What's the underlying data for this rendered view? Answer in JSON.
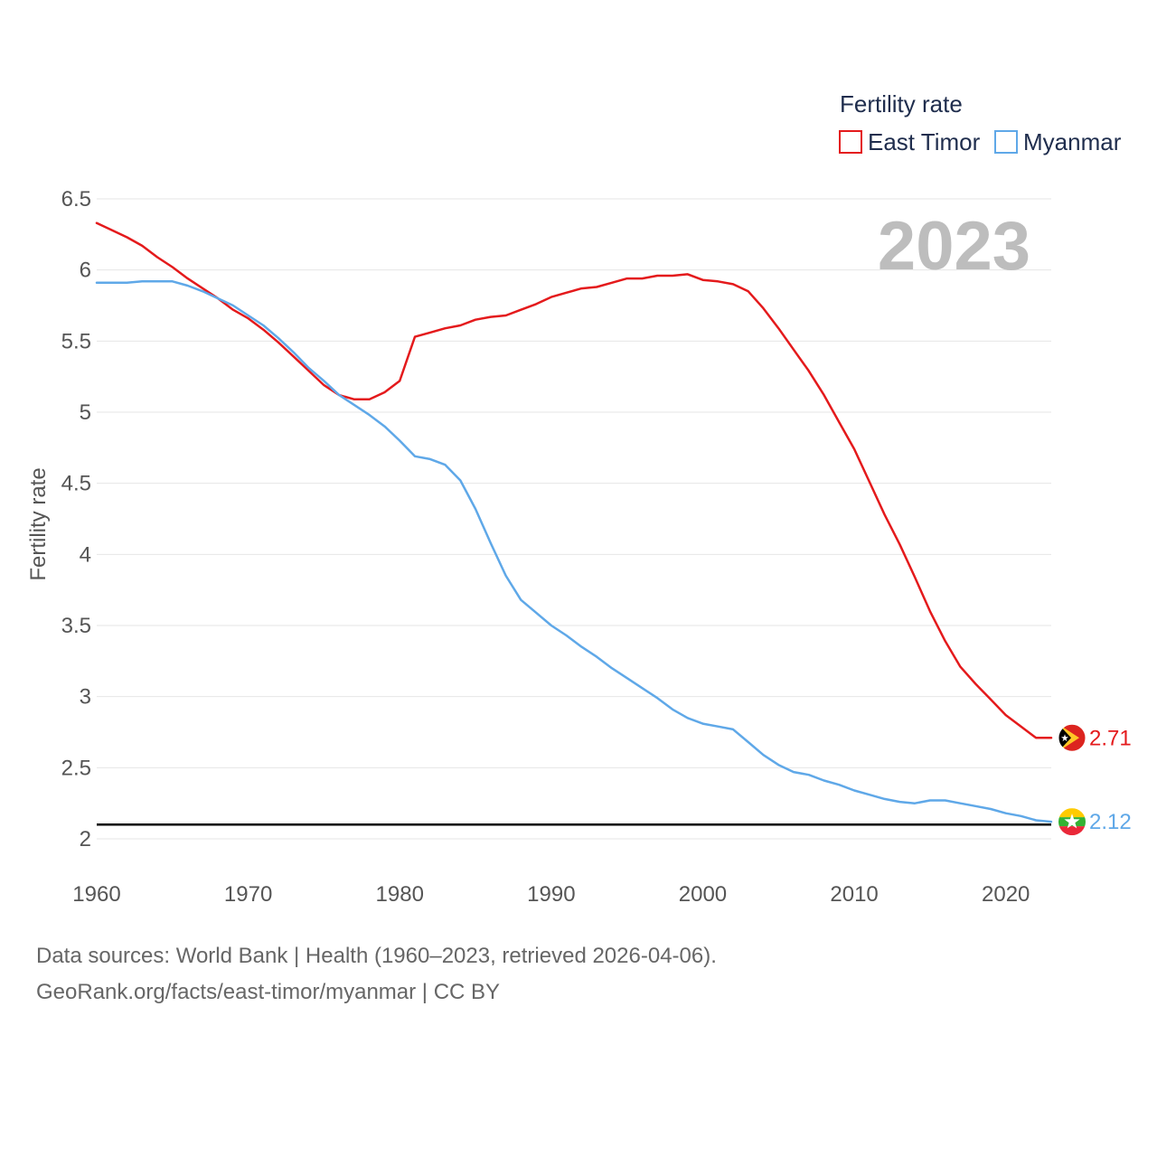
{
  "chart_data": {
    "type": "line",
    "ylabel": "Fertility rate",
    "xlabel": "",
    "xlim": [
      1960,
      2023
    ],
    "ylim": [
      2,
      6.5
    ],
    "x_ticks": [
      1960,
      1970,
      1980,
      1990,
      2000,
      2010,
      2020
    ],
    "x_tick_labels": [
      "1960",
      "1970",
      "1980",
      "1990",
      "2000",
      "2010",
      "2020"
    ],
    "y_ticks": [
      2,
      2.5,
      3,
      3.5,
      4,
      4.5,
      5,
      5.5,
      6,
      6.5
    ],
    "y_tick_labels": [
      "2",
      "2.5",
      "3",
      "3.5",
      "4",
      "4.5",
      "5",
      "5.5",
      "6",
      "6.5"
    ],
    "legend_title": "Fertility rate",
    "year_label": "2023",
    "reference_line": 2.1,
    "series": [
      {
        "name": "East Timor",
        "color": "#e41a1c",
        "end_label": "2.71",
        "flag": "east-timor-flag",
        "x": [
          1960,
          1961,
          1962,
          1963,
          1964,
          1965,
          1966,
          1967,
          1968,
          1969,
          1970,
          1971,
          1972,
          1973,
          1974,
          1975,
          1976,
          1977,
          1978,
          1979,
          1980,
          1981,
          1982,
          1983,
          1984,
          1985,
          1986,
          1987,
          1988,
          1989,
          1990,
          1991,
          1992,
          1993,
          1994,
          1995,
          1996,
          1997,
          1998,
          1999,
          2000,
          2001,
          2002,
          2003,
          2004,
          2005,
          2006,
          2007,
          2008,
          2009,
          2010,
          2011,
          2012,
          2013,
          2014,
          2015,
          2016,
          2017,
          2018,
          2019,
          2020,
          2021,
          2022,
          2023
        ],
        "values": [
          6.33,
          6.28,
          6.23,
          6.17,
          6.09,
          6.02,
          5.94,
          5.87,
          5.8,
          5.72,
          5.66,
          5.58,
          5.49,
          5.39,
          5.29,
          5.19,
          5.12,
          5.09,
          5.09,
          5.14,
          5.22,
          5.53,
          5.56,
          5.59,
          5.61,
          5.65,
          5.67,
          5.68,
          5.72,
          5.76,
          5.81,
          5.84,
          5.87,
          5.88,
          5.91,
          5.94,
          5.94,
          5.96,
          5.96,
          5.97,
          5.93,
          5.92,
          5.9,
          5.85,
          5.73,
          5.59,
          5.44,
          5.29,
          5.12,
          4.93,
          4.74,
          4.51,
          4.28,
          4.07,
          3.84,
          3.6,
          3.39,
          3.21,
          3.09,
          2.98,
          2.87,
          2.79,
          2.71,
          2.71
        ]
      },
      {
        "name": "Myanmar",
        "color": "#5fa8e8",
        "end_label": "2.12",
        "flag": "myanmar-flag",
        "x": [
          1960,
          1961,
          1962,
          1963,
          1964,
          1965,
          1966,
          1967,
          1968,
          1969,
          1970,
          1971,
          1972,
          1973,
          1974,
          1975,
          1976,
          1977,
          1978,
          1979,
          1980,
          1981,
          1982,
          1983,
          1984,
          1985,
          1986,
          1987,
          1988,
          1989,
          1990,
          1991,
          1992,
          1993,
          1994,
          1995,
          1996,
          1997,
          1998,
          1999,
          2000,
          2001,
          2002,
          2003,
          2004,
          2005,
          2006,
          2007,
          2008,
          2009,
          2010,
          2011,
          2012,
          2013,
          2014,
          2015,
          2016,
          2017,
          2018,
          2019,
          2020,
          2021,
          2022,
          2023
        ],
        "values": [
          5.91,
          5.91,
          5.91,
          5.92,
          5.92,
          5.92,
          5.89,
          5.85,
          5.8,
          5.75,
          5.68,
          5.61,
          5.52,
          5.42,
          5.31,
          5.22,
          5.12,
          5.05,
          4.98,
          4.9,
          4.8,
          4.69,
          4.67,
          4.63,
          4.52,
          4.32,
          4.08,
          3.85,
          3.68,
          3.59,
          3.5,
          3.43,
          3.35,
          3.28,
          3.2,
          3.13,
          3.06,
          2.99,
          2.91,
          2.85,
          2.81,
          2.79,
          2.77,
          2.68,
          2.59,
          2.52,
          2.47,
          2.45,
          2.41,
          2.38,
          2.34,
          2.31,
          2.28,
          2.26,
          2.25,
          2.27,
          2.27,
          2.25,
          2.23,
          2.21,
          2.18,
          2.16,
          2.13,
          2.12
        ]
      }
    ]
  },
  "footer": {
    "line1": "Data sources: World Bank | Health (1960–2023, retrieved 2026-04-06).",
    "line2": "GeoRank.org/facts/east-timor/myanmar | CC BY"
  }
}
